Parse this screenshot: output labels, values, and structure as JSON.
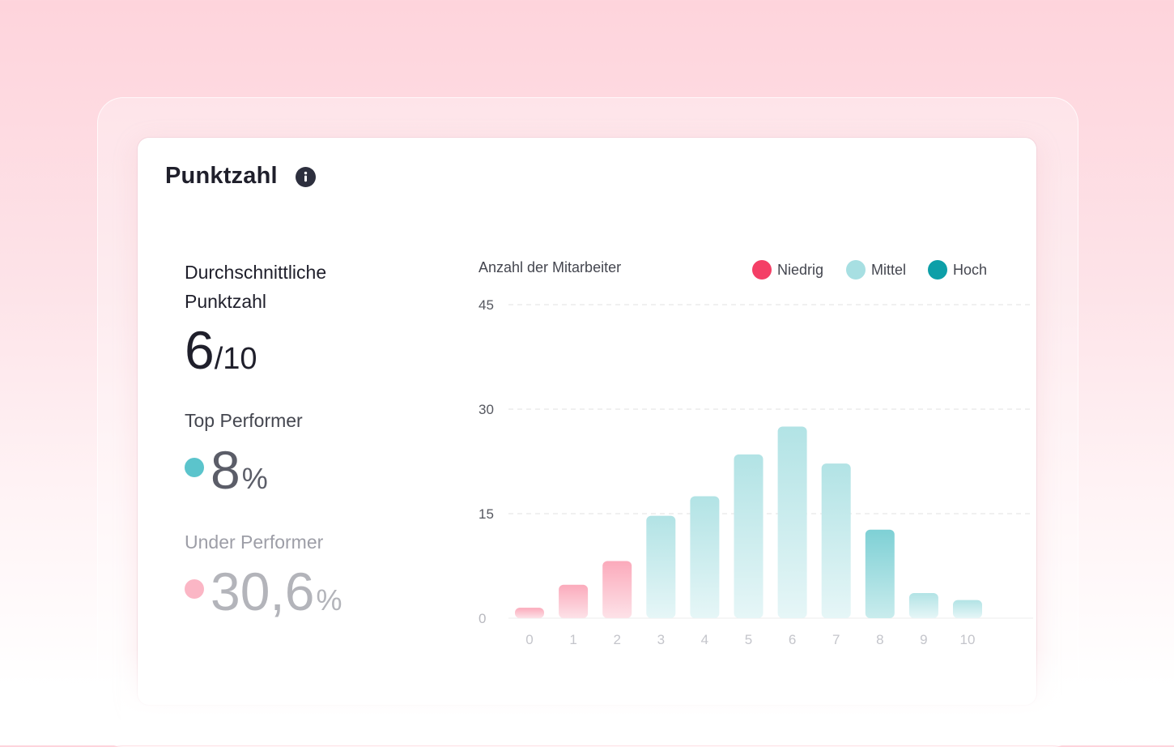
{
  "card": {
    "title": "Punktzahl",
    "info_icon": "info-icon"
  },
  "summary": {
    "average_label": "Durchschnittliche Punktzahl",
    "average_value": "6",
    "average_scale": "/10",
    "top": {
      "label": "Top Performer",
      "value": "8",
      "unit": "%",
      "dot_color": "#5bc4cc"
    },
    "under": {
      "label": "Under Performer",
      "value": "30,6",
      "unit": "%",
      "dot_color": "#fbb6c5"
    }
  },
  "legend": [
    {
      "label": "Niedrig",
      "color": "#f43f66"
    },
    {
      "label": "Mittel",
      "color": "#a7dfe2"
    },
    {
      "label": "Hoch",
      "color": "#0d9fa8"
    }
  ],
  "chart_data": {
    "type": "bar",
    "ylabel": "Anzahl der Mitarbeiter",
    "xlabel": "",
    "categories": [
      "0",
      "1",
      "2",
      "3",
      "4",
      "5",
      "6",
      "7",
      "8",
      "9",
      "10"
    ],
    "values": [
      1.5,
      4.8,
      8.2,
      14.7,
      17.5,
      23.5,
      27.5,
      22.2,
      12.7,
      3.6,
      2.6
    ],
    "groups": [
      "Niedrig",
      "Niedrig",
      "Niedrig",
      "Mittel",
      "Mittel",
      "Mittel",
      "Mittel",
      "Mittel",
      "Hoch",
      "Mittel",
      "Mittel"
    ],
    "yticks": [
      0,
      15,
      30,
      45
    ],
    "ylim": [
      0,
      45
    ],
    "grid": true,
    "legend_position": "top-right"
  }
}
